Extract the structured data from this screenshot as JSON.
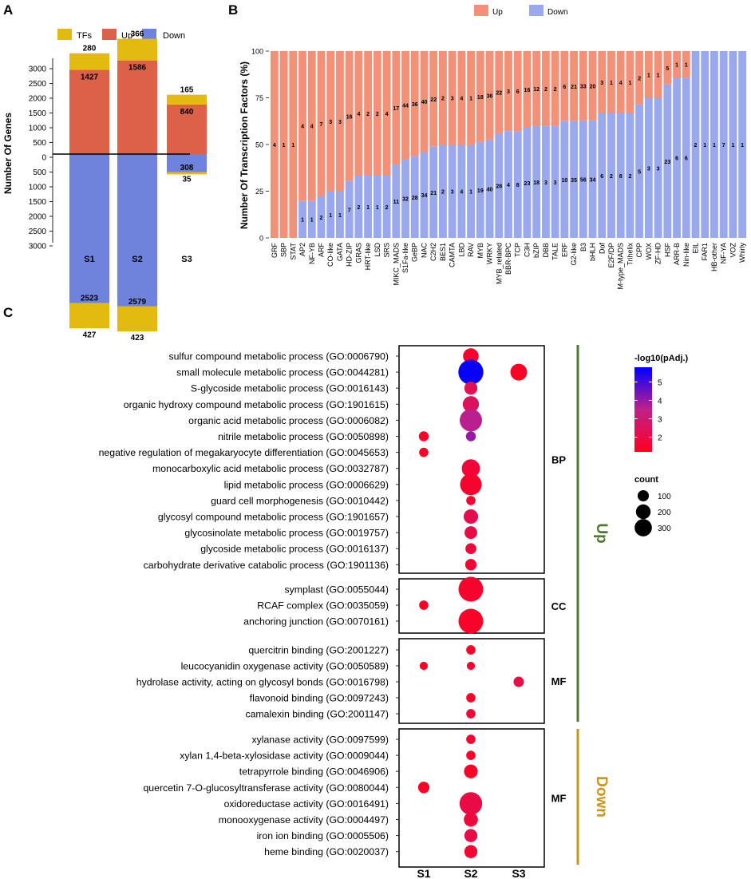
{
  "colors": {
    "tfs": "#e3bb10",
    "up": "#dd6148",
    "down": "#6f82dc",
    "up_b": "#f29178",
    "down_b": "#9aa8ee",
    "grad_low": "#ff0020",
    "grad_mid": "#c0208a",
    "grad_high": "#0000ff",
    "up_bar": "#4e7a2d",
    "down_bar": "#c9951b"
  },
  "chart_data": [
    {
      "panel_label": "A",
      "type": "bar",
      "title": "",
      "xlabel": "",
      "ylabel": "Number Of Genes",
      "categories": [
        "S1",
        "S2",
        "S3"
      ],
      "legend": [
        "TFs",
        "Up",
        "Down"
      ],
      "series": [
        {
          "name": "Up",
          "values": [
            1427,
            1586,
            840
          ]
        },
        {
          "name": "TFs (up)",
          "values": [
            280,
            366,
            165
          ]
        },
        {
          "name": "Down",
          "values": [
            2523,
            2579,
            308
          ]
        },
        {
          "name": "TFs (down)",
          "values": [
            427,
            423,
            35
          ]
        }
      ],
      "yticks": [
        "3000",
        "2500",
        "2000",
        "1500",
        "1000",
        "500",
        "0",
        "500",
        "1000",
        "1500",
        "2000",
        "2500",
        "3000"
      ],
      "ylim": [
        -3000,
        3000
      ]
    },
    {
      "panel_label": "B",
      "type": "bar",
      "ylabel": "Number Of Transcription Factors (%)",
      "legend": [
        "Up",
        "Down"
      ],
      "yticks": [
        "0",
        "25",
        "50",
        "75",
        "100"
      ],
      "ylim": [
        0,
        100
      ],
      "families": [
        {
          "name": "GRF",
          "up": 4,
          "down": 0
        },
        {
          "name": "SBP",
          "up": 1,
          "down": 0
        },
        {
          "name": "STAT",
          "up": 1,
          "down": 0
        },
        {
          "name": "AP2",
          "up": 4,
          "down": 1
        },
        {
          "name": "NF-YB",
          "up": 4,
          "down": 1
        },
        {
          "name": "ARF",
          "up": 7,
          "down": 2
        },
        {
          "name": "CO-like",
          "up": 3,
          "down": 1
        },
        {
          "name": "GATA",
          "up": 3,
          "down": 1
        },
        {
          "name": "HD-ZIP",
          "up": 16,
          "down": 7
        },
        {
          "name": "GRAS",
          "up": 4,
          "down": 2
        },
        {
          "name": "HRT-like",
          "up": 2,
          "down": 1
        },
        {
          "name": "LSD",
          "up": 2,
          "down": 1
        },
        {
          "name": "SRS",
          "up": 4,
          "down": 2
        },
        {
          "name": "MIKC_MADS",
          "up": 17,
          "down": 11
        },
        {
          "name": "S1Fa-like",
          "up": 44,
          "down": 32
        },
        {
          "name": "GeBP",
          "up": 36,
          "down": 28
        },
        {
          "name": "NAC",
          "up": 40,
          "down": 34
        },
        {
          "name": "C2H2",
          "up": 22,
          "down": 21
        },
        {
          "name": "BES1",
          "up": 2,
          "down": 2
        },
        {
          "name": "CAMTA",
          "up": 3,
          "down": 3
        },
        {
          "name": "LBD",
          "up": 4,
          "down": 4
        },
        {
          "name": "RAV",
          "up": 1,
          "down": 1
        },
        {
          "name": "MYB",
          "up": 18,
          "down": 19
        },
        {
          "name": "WRKY",
          "up": 36,
          "down": 40
        },
        {
          "name": "MYB_related",
          "up": 22,
          "down": 28
        },
        {
          "name": "BBR-BPC",
          "up": 3,
          "down": 4
        },
        {
          "name": "TCP",
          "up": 6,
          "down": 8
        },
        {
          "name": "C3H",
          "up": 16,
          "down": 23
        },
        {
          "name": "bZIP",
          "up": 12,
          "down": 18
        },
        {
          "name": "DBB",
          "up": 2,
          "down": 3
        },
        {
          "name": "TALE",
          "up": 2,
          "down": 3
        },
        {
          "name": "ERF",
          "up": 6,
          "down": 10
        },
        {
          "name": "G2-like",
          "up": 21,
          "down": 35
        },
        {
          "name": "B3",
          "up": 33,
          "down": 56
        },
        {
          "name": "bHLH",
          "up": 20,
          "down": 34
        },
        {
          "name": "Dof",
          "up": 3,
          "down": 6
        },
        {
          "name": "E2F/DP",
          "up": 1,
          "down": 2
        },
        {
          "name": "M-type_MADS",
          "up": 4,
          "down": 8
        },
        {
          "name": "Trihelix",
          "up": 1,
          "down": 2
        },
        {
          "name": "CPP",
          "up": 2,
          "down": 5
        },
        {
          "name": "WOX",
          "up": 1,
          "down": 3
        },
        {
          "name": "ZF-HD",
          "up": 1,
          "down": 3
        },
        {
          "name": "HSF",
          "up": 5,
          "down": 23
        },
        {
          "name": "ARR-B",
          "up": 1,
          "down": 6
        },
        {
          "name": "Nin-like",
          "up": 1,
          "down": 6
        },
        {
          "name": "EIL",
          "up": 0,
          "down": 2
        },
        {
          "name": "FAR1",
          "up": 0,
          "down": 1
        },
        {
          "name": "HB-other",
          "up": 0,
          "down": 1
        },
        {
          "name": "NF-YA",
          "up": 0,
          "down": 7
        },
        {
          "name": "VOZ",
          "up": 0,
          "down": 1
        },
        {
          "name": "Whirly",
          "up": 0,
          "down": 1
        }
      ]
    },
    {
      "panel_label": "C",
      "type": "scatter",
      "xcategories": [
        "S1",
        "S2",
        "S3"
      ],
      "color_title": "-log10(pAdj.)",
      "color_ticks": [
        "5",
        "4",
        "3",
        "2"
      ],
      "color_range": [
        1.2,
        5.8
      ],
      "size_title": "count",
      "size_ticks": [
        "100",
        "200",
        "300"
      ],
      "direction_labels": [
        "Up",
        "Down"
      ],
      "groups": [
        {
          "label": "BP",
          "direction": "Up",
          "terms": [
            {
              "term": "sulfur compound metabolic process (GO:0006790)",
              "points": [
                {
                  "s": "S2",
                  "count": 100,
                  "p": 1.5
                }
              ]
            },
            {
              "term": "small molecule metabolic process (GO:0044281)",
              "points": [
                {
                  "s": "S2",
                  "count": 330,
                  "p": 5.7
                },
                {
                  "s": "S3",
                  "count": 120,
                  "p": 1.3
                }
              ]
            },
            {
              "term": "S-glycoside metabolic process (GO:0016143)",
              "points": [
                {
                  "s": "S2",
                  "count": 60,
                  "p": 2.3
                }
              ]
            },
            {
              "term": "organic hydroxy compound metabolic process (GO:1901615)",
              "points": [
                {
                  "s": "S2",
                  "count": 110,
                  "p": 2.5
                }
              ]
            },
            {
              "term": "organic acid metabolic process (GO:0006082)",
              "points": [
                {
                  "s": "S2",
                  "count": 250,
                  "p": 3.6
                }
              ]
            },
            {
              "term": "nitrile metabolic process (GO:0050898)",
              "points": [
                {
                  "s": "S1",
                  "count": 25,
                  "p": 1.4
                },
                {
                  "s": "S2",
                  "count": 25,
                  "p": 4.0
                }
              ]
            },
            {
              "term": "negative regulation of megakaryocyte differentiation (GO:0045653)",
              "points": [
                {
                  "s": "S1",
                  "count": 20,
                  "p": 1.3
                }
              ]
            },
            {
              "term": "monocarboxylic acid metabolic process (GO:0032787)",
              "points": [
                {
                  "s": "S2",
                  "count": 150,
                  "p": 1.7
                }
              ]
            },
            {
              "term": "lipid metabolic process (GO:0006629)",
              "points": [
                {
                  "s": "S2",
                  "count": 230,
                  "p": 1.5
                }
              ]
            },
            {
              "term": "guard cell morphogenesis (GO:0010442)",
              "points": [
                {
                  "s": "S2",
                  "count": 20,
                  "p": 1.6
                }
              ]
            },
            {
              "term": "glycosyl compound metabolic process (GO:1901657)",
              "points": [
                {
                  "s": "S2",
                  "count": 80,
                  "p": 2.2
                }
              ]
            },
            {
              "term": "glycosinolate metabolic process (GO:0019757)",
              "points": [
                {
                  "s": "S2",
                  "count": 55,
                  "p": 2.0
                }
              ]
            },
            {
              "term": "glycoside metabolic process (GO:0016137)",
              "points": [
                {
                  "s": "S2",
                  "count": 35,
                  "p": 1.8
                }
              ]
            },
            {
              "term": "carbohydrate derivative catabolic process (GO:1901136)",
              "points": [
                {
                  "s": "S2",
                  "count": 40,
                  "p": 1.6
                }
              ]
            }
          ]
        },
        {
          "label": "CC",
          "direction": "Up",
          "terms": [
            {
              "term": "symplast (GO:0055044)",
              "points": [
                {
                  "s": "S2",
                  "count": 320,
                  "p": 1.5
                }
              ]
            },
            {
              "term": "RCAF complex (GO:0035059)",
              "points": [
                {
                  "s": "S1",
                  "count": 20,
                  "p": 1.3
                }
              ]
            },
            {
              "term": "anchoring junction (GO:0070161)",
              "points": [
                {
                  "s": "S2",
                  "count": 320,
                  "p": 1.4
                }
              ]
            }
          ]
        },
        {
          "label": "MF",
          "direction": "Up",
          "terms": [
            {
              "term": "quercitrin binding (GO:2001227)",
              "points": [
                {
                  "s": "S2",
                  "count": 20,
                  "p": 1.4
                }
              ]
            },
            {
              "term": "leucocyanidin oxygenase activity (GO:0050589)",
              "points": [
                {
                  "s": "S1",
                  "count": 12,
                  "p": 1.3
                },
                {
                  "s": "S2",
                  "count": 12,
                  "p": 1.5
                }
              ]
            },
            {
              "term": "hydrolase activity, acting on glycosyl bonds (GO:0016798)",
              "points": [
                {
                  "s": "S3",
                  "count": 30,
                  "p": 2.1
                }
              ]
            },
            {
              "term": "flavonoid binding (GO:0097243)",
              "points": [
                {
                  "s": "S2",
                  "count": 20,
                  "p": 1.4
                }
              ]
            },
            {
              "term": "camalexin binding (GO:2001147)",
              "points": [
                {
                  "s": "S2",
                  "count": 20,
                  "p": 1.7
                }
              ]
            }
          ]
        },
        {
          "label": "MF",
          "direction": "Down",
          "terms": [
            {
              "term": "xylanase activity (GO:0097599)",
              "points": [
                {
                  "s": "S2",
                  "count": 20,
                  "p": 1.5
                }
              ]
            },
            {
              "term": "xylan 1,4-beta-xylosidase activity (GO:0009044)",
              "points": [
                {
                  "s": "S2",
                  "count": 20,
                  "p": 1.4
                }
              ]
            },
            {
              "term": "tetrapyrrole binding (GO:0046906)",
              "points": [
                {
                  "s": "S2",
                  "count": 70,
                  "p": 1.4
                }
              ]
            },
            {
              "term": "quercetin 7-O-glucosyltransferase activity (GO:0080044)",
              "points": [
                {
                  "s": "S1",
                  "count": 40,
                  "p": 1.4
                }
              ]
            },
            {
              "term": "oxidoreductase activity (GO:0016491)",
              "points": [
                {
                  "s": "S2",
                  "count": 260,
                  "p": 2.0
                }
              ]
            },
            {
              "term": "monooxygenase activity (GO:0004497)",
              "points": [
                {
                  "s": "S2",
                  "count": 75,
                  "p": 1.8
                }
              ]
            },
            {
              "term": "iron ion binding (GO:0005506)",
              "points": [
                {
                  "s": "S2",
                  "count": 60,
                  "p": 2.0
                }
              ]
            },
            {
              "term": "heme binding (GO:0020037)",
              "points": [
                {
                  "s": "S2",
                  "count": 60,
                  "p": 1.6
                }
              ]
            }
          ]
        }
      ]
    }
  ]
}
